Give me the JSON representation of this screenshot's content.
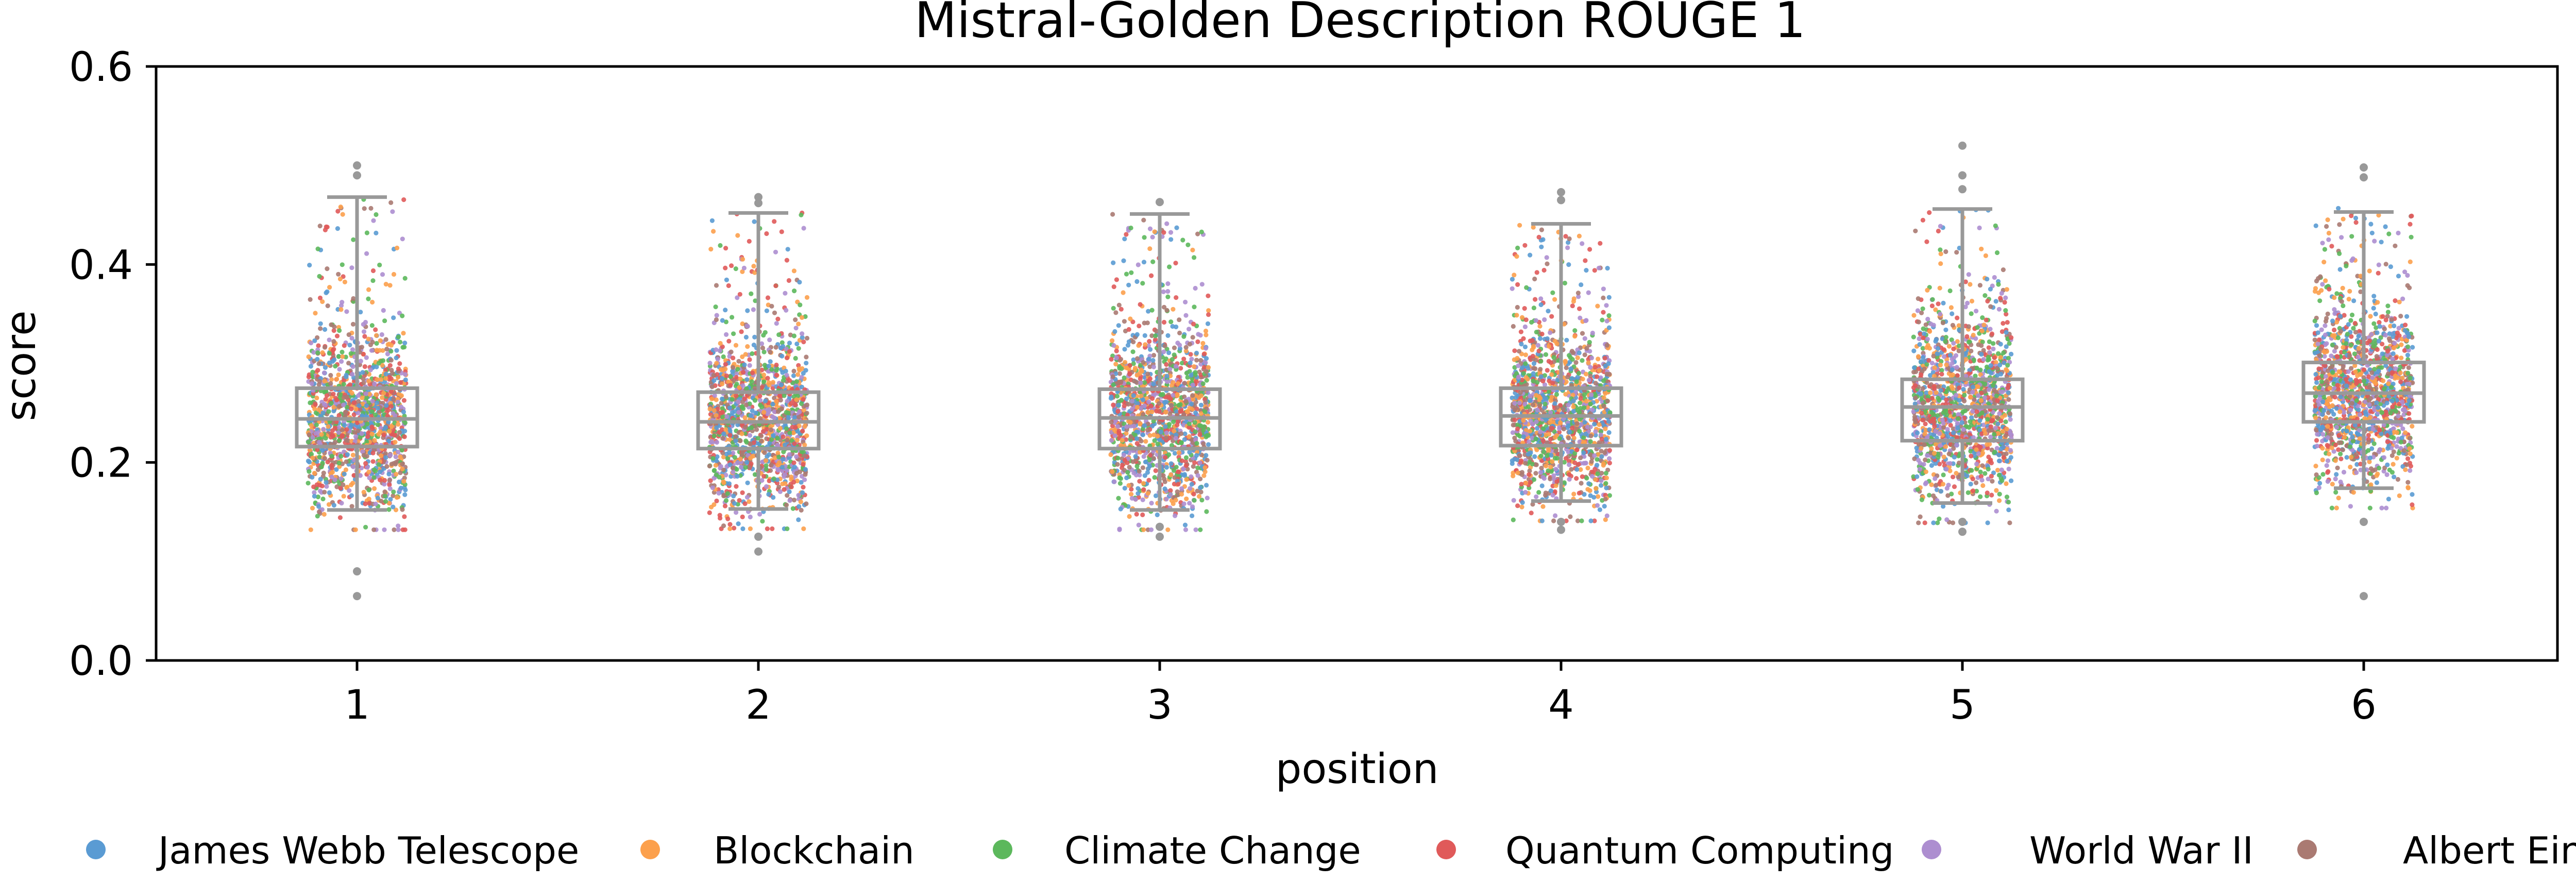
{
  "chart_data": {
    "type": "box+strip",
    "title": "Mistral-Golden Description ROUGE 1",
    "xlabel": "position",
    "ylabel": "score",
    "ylim": [
      0.0,
      0.6
    ],
    "yticks": [
      0.0,
      0.2,
      0.4,
      0.6
    ],
    "ytick_labels": [
      "0.0",
      "0.2",
      "0.4",
      "0.6"
    ],
    "categories": [
      "1",
      "2",
      "3",
      "4",
      "5",
      "6"
    ],
    "grid": false,
    "legend_placement": "bottom",
    "box_color": "#999999",
    "boxes": [
      {
        "position": "1",
        "whisker_low": 0.152,
        "q1": 0.216,
        "median": 0.244,
        "q3": 0.275,
        "whisker_high": 0.468,
        "outliers": [
          0.5,
          0.49,
          0.09,
          0.065
        ]
      },
      {
        "position": "2",
        "whisker_low": 0.153,
        "q1": 0.214,
        "median": 0.241,
        "q3": 0.271,
        "whisker_high": 0.452,
        "outliers": [
          0.468,
          0.462,
          0.125,
          0.11
        ]
      },
      {
        "position": "3",
        "whisker_low": 0.152,
        "q1": 0.214,
        "median": 0.245,
        "q3": 0.274,
        "whisker_high": 0.451,
        "outliers": [
          0.463,
          0.135,
          0.125
        ]
      },
      {
        "position": "4",
        "whisker_low": 0.161,
        "q1": 0.217,
        "median": 0.247,
        "q3": 0.275,
        "whisker_high": 0.441,
        "outliers": [
          0.473,
          0.465,
          0.14,
          0.132
        ]
      },
      {
        "position": "5",
        "whisker_low": 0.159,
        "q1": 0.222,
        "median": 0.256,
        "q3": 0.284,
        "whisker_high": 0.456,
        "outliers": [
          0.52,
          0.49,
          0.476,
          0.14,
          0.13
        ]
      },
      {
        "position": "6",
        "whisker_low": 0.174,
        "q1": 0.241,
        "median": 0.27,
        "q3": 0.301,
        "whisker_high": 0.453,
        "outliers": [
          0.498,
          0.488,
          0.14,
          0.065
        ]
      }
    ],
    "series": [
      {
        "name": "James Webb Telescope",
        "color": "#5a9bd3"
      },
      {
        "name": "Blockchain",
        "color": "#fca04c"
      },
      {
        "name": "Climate Change",
        "color": "#5cb85c"
      },
      {
        "name": "Quantum Computing",
        "color": "#e05a5a"
      },
      {
        "name": "World War II",
        "color": "#ad8ed0"
      },
      {
        "name": "Albert Einstein",
        "color": "#aa7a72"
      }
    ]
  }
}
